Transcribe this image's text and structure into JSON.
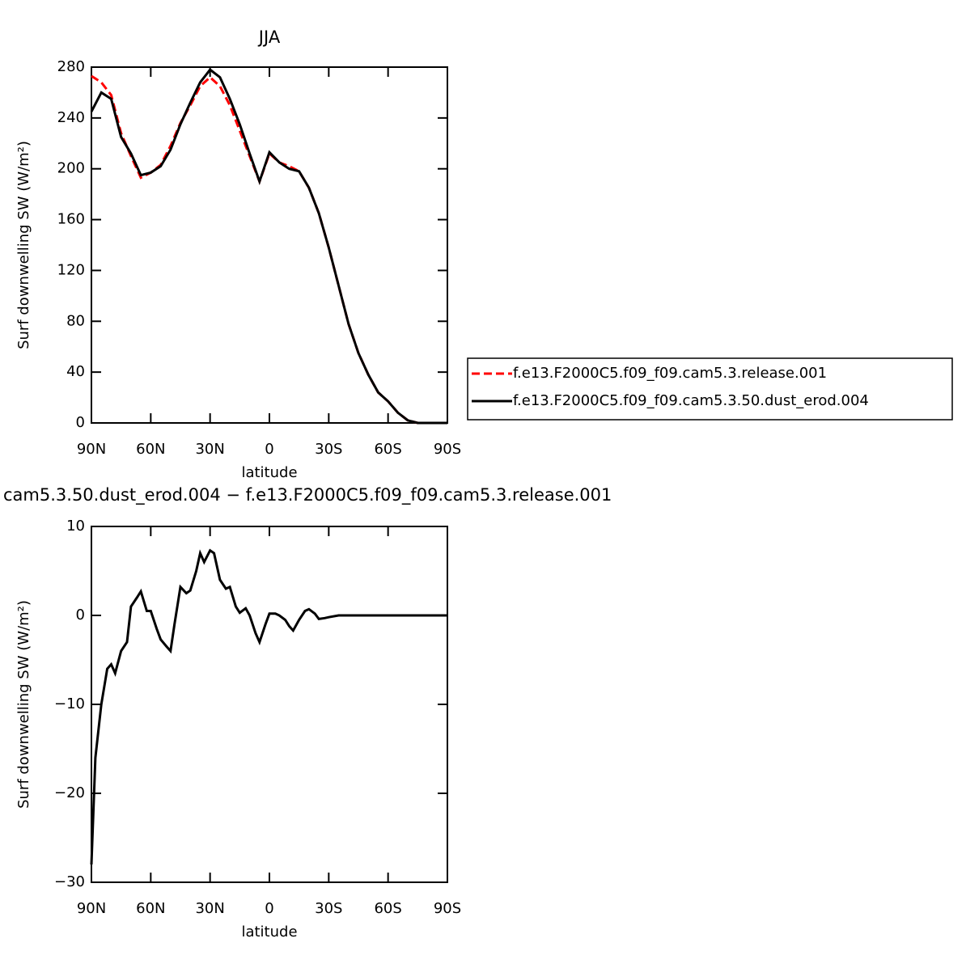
{
  "chart_data": [
    {
      "type": "line",
      "title": "JJA",
      "xlabel": "latitude",
      "ylabel": "Surf downwelling SW (W/m²)",
      "x": [
        90,
        85,
        80,
        75,
        70,
        65,
        60,
        55,
        50,
        45,
        40,
        35,
        30,
        25,
        20,
        15,
        10,
        5,
        0,
        -5,
        -10,
        -15,
        -20,
        -25,
        -30,
        -35,
        -40,
        -45,
        -50,
        -55,
        -60,
        -65,
        -70,
        -75,
        -80,
        -85,
        -90
      ],
      "series": [
        {
          "name": "f.e13.F2000C5.f09_f09.cam5.3.release.001",
          "color": "#ff0000",
          "dashed": true,
          "values": [
            273,
            268,
            258,
            228,
            210,
            193,
            197,
            203,
            218,
            236,
            250,
            265,
            272,
            265,
            250,
            230,
            210,
            190,
            212,
            205,
            202,
            198,
            185,
            165,
            138,
            108,
            78,
            55,
            38,
            24,
            17,
            8,
            2,
            0,
            0,
            0,
            0
          ]
        },
        {
          "name": "f.e13.F2000C5.f09_f09.cam5.3.50.dust_erod.004",
          "color": "#000000",
          "dashed": false,
          "values": [
            245,
            260,
            255,
            225,
            212,
            195,
            197,
            202,
            215,
            235,
            252,
            268,
            278,
            272,
            255,
            235,
            212,
            190,
            213,
            205,
            200,
            198,
            185,
            165,
            138,
            108,
            78,
            55,
            38,
            24,
            17,
            8,
            2,
            0,
            0,
            0,
            0
          ]
        }
      ],
      "xlim": [
        90,
        -90
      ],
      "xticks": [
        {
          "value": 90,
          "label": "90N"
        },
        {
          "value": 60,
          "label": "60N"
        },
        {
          "value": 30,
          "label": "30N"
        },
        0,
        {
          "value": -30,
          "label": "30S"
        },
        {
          "value": -60,
          "label": "60S"
        },
        {
          "value": -90,
          "label": "90S"
        }
      ],
      "ylim": [
        0,
        280
      ],
      "yticks": [
        0,
        40,
        80,
        120,
        160,
        200,
        240,
        280
      ],
      "legend": "right"
    },
    {
      "type": "line",
      "title": "cam5.3.50.dust_erod.004 − f.e13.F2000C5.f09_f09.cam5.3.release.001",
      "xlabel": "latitude",
      "ylabel": "Surf downwelling SW (W/m²)",
      "x": [
        90,
        88,
        85,
        82,
        80,
        78,
        75,
        72,
        70,
        67,
        65,
        62,
        60,
        57,
        55,
        52,
        50,
        48,
        45,
        42,
        40,
        37,
        35,
        33,
        30,
        28,
        25,
        22,
        20,
        17,
        15,
        12,
        10,
        7,
        5,
        2,
        0,
        -3,
        -5,
        -8,
        -10,
        -12,
        -15,
        -18,
        -20,
        -23,
        -25,
        -28,
        -30,
        -35,
        -40,
        -50,
        -60,
        -70,
        -80,
        -90
      ],
      "values": [
        -28,
        -16,
        -10,
        -6,
        -5.5,
        -6.5,
        -4,
        -3,
        1,
        2,
        2.7,
        0.5,
        0.5,
        -1.5,
        -2.7,
        -3.5,
        -4,
        -1,
        3.2,
        2.5,
        2.8,
        5,
        7,
        6,
        7.3,
        7,
        4,
        3,
        3.2,
        1,
        0.3,
        0.8,
        0,
        -2,
        -3,
        -1,
        0.2,
        0.2,
        0,
        -0.5,
        -1.2,
        -1.7,
        -0.5,
        0.5,
        0.7,
        0.2,
        -0.4,
        -0.3,
        -0.2,
        0,
        0,
        0,
        0,
        0,
        0,
        0
      ],
      "color": "#000000",
      "xlim": [
        90,
        -90
      ],
      "xticks": [
        {
          "value": 90,
          "label": "90N"
        },
        {
          "value": 60,
          "label": "60N"
        },
        {
          "value": 30,
          "label": "30N"
        },
        0,
        {
          "value": -30,
          "label": "30S"
        },
        {
          "value": -60,
          "label": "60S"
        },
        {
          "value": -90,
          "label": "90S"
        }
      ],
      "ylim": [
        -30,
        10
      ],
      "yticks": [
        {
          "value": -30,
          "label": "−30"
        },
        {
          "value": -20,
          "label": "−20"
        },
        {
          "value": -10,
          "label": "−10"
        },
        0,
        10
      ]
    }
  ]
}
